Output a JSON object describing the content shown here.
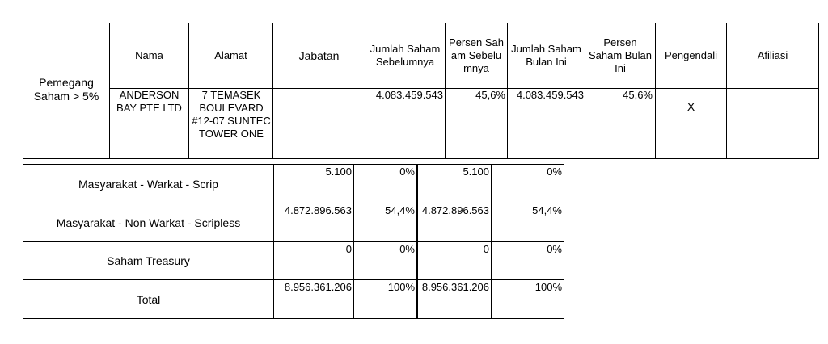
{
  "top_table": {
    "row_label": "Pemegang Saham > 5%",
    "headers": {
      "nama": "Nama",
      "alamat": "Alamat",
      "jabatan": "Jabatan",
      "jumlah_sebelumnya": "Jumlah Saham Sebelumnya",
      "persen_sebelumnya": "Persen Saham Sebelumnya",
      "jumlah_bulan_ini": "Jumlah Saham Bulan Ini",
      "persen_bulan_ini": "Persen Saham Bulan Ini",
      "pengendali": "Pengendali",
      "afiliasi": "Afiliasi"
    },
    "row": {
      "nama": "ANDERSON BAY PTE LTD",
      "alamat": "7 TEMASEK BOULEVARD #12-07 SUNTEC TOWER ONE",
      "jabatan": "",
      "jumlah_sebelumnya": "4.083.459.543",
      "persen_sebelumnya": "45,6%",
      "jumlah_bulan_ini": "4.083.459.543",
      "persen_bulan_ini": "45,6%",
      "pengendali": "X",
      "afiliasi": ""
    }
  },
  "bottom_table": {
    "rows": [
      {
        "label": "Masyarakat - Warkat - Scrip",
        "jumlah_sebelumnya": "5.100",
        "persen_sebelumnya": "0%",
        "jumlah_bulan_ini": "5.100",
        "persen_bulan_ini": "0%"
      },
      {
        "label": "Masyarakat - Non Warkat - Scripless",
        "jumlah_sebelumnya": "4.872.896.563",
        "persen_sebelumnya": "54,4%",
        "jumlah_bulan_ini": "4.872.896.563",
        "persen_bulan_ini": "54,4%"
      },
      {
        "label": "Saham Treasury",
        "jumlah_sebelumnya": "0",
        "persen_sebelumnya": "0%",
        "jumlah_bulan_ini": "0",
        "persen_bulan_ini": "0%"
      },
      {
        "label": "Total",
        "jumlah_sebelumnya": "8.956.361.206",
        "persen_sebelumnya": "100%",
        "jumlah_bulan_ini": "8.956.361.206",
        "persen_bulan_ini": "100%"
      }
    ]
  }
}
